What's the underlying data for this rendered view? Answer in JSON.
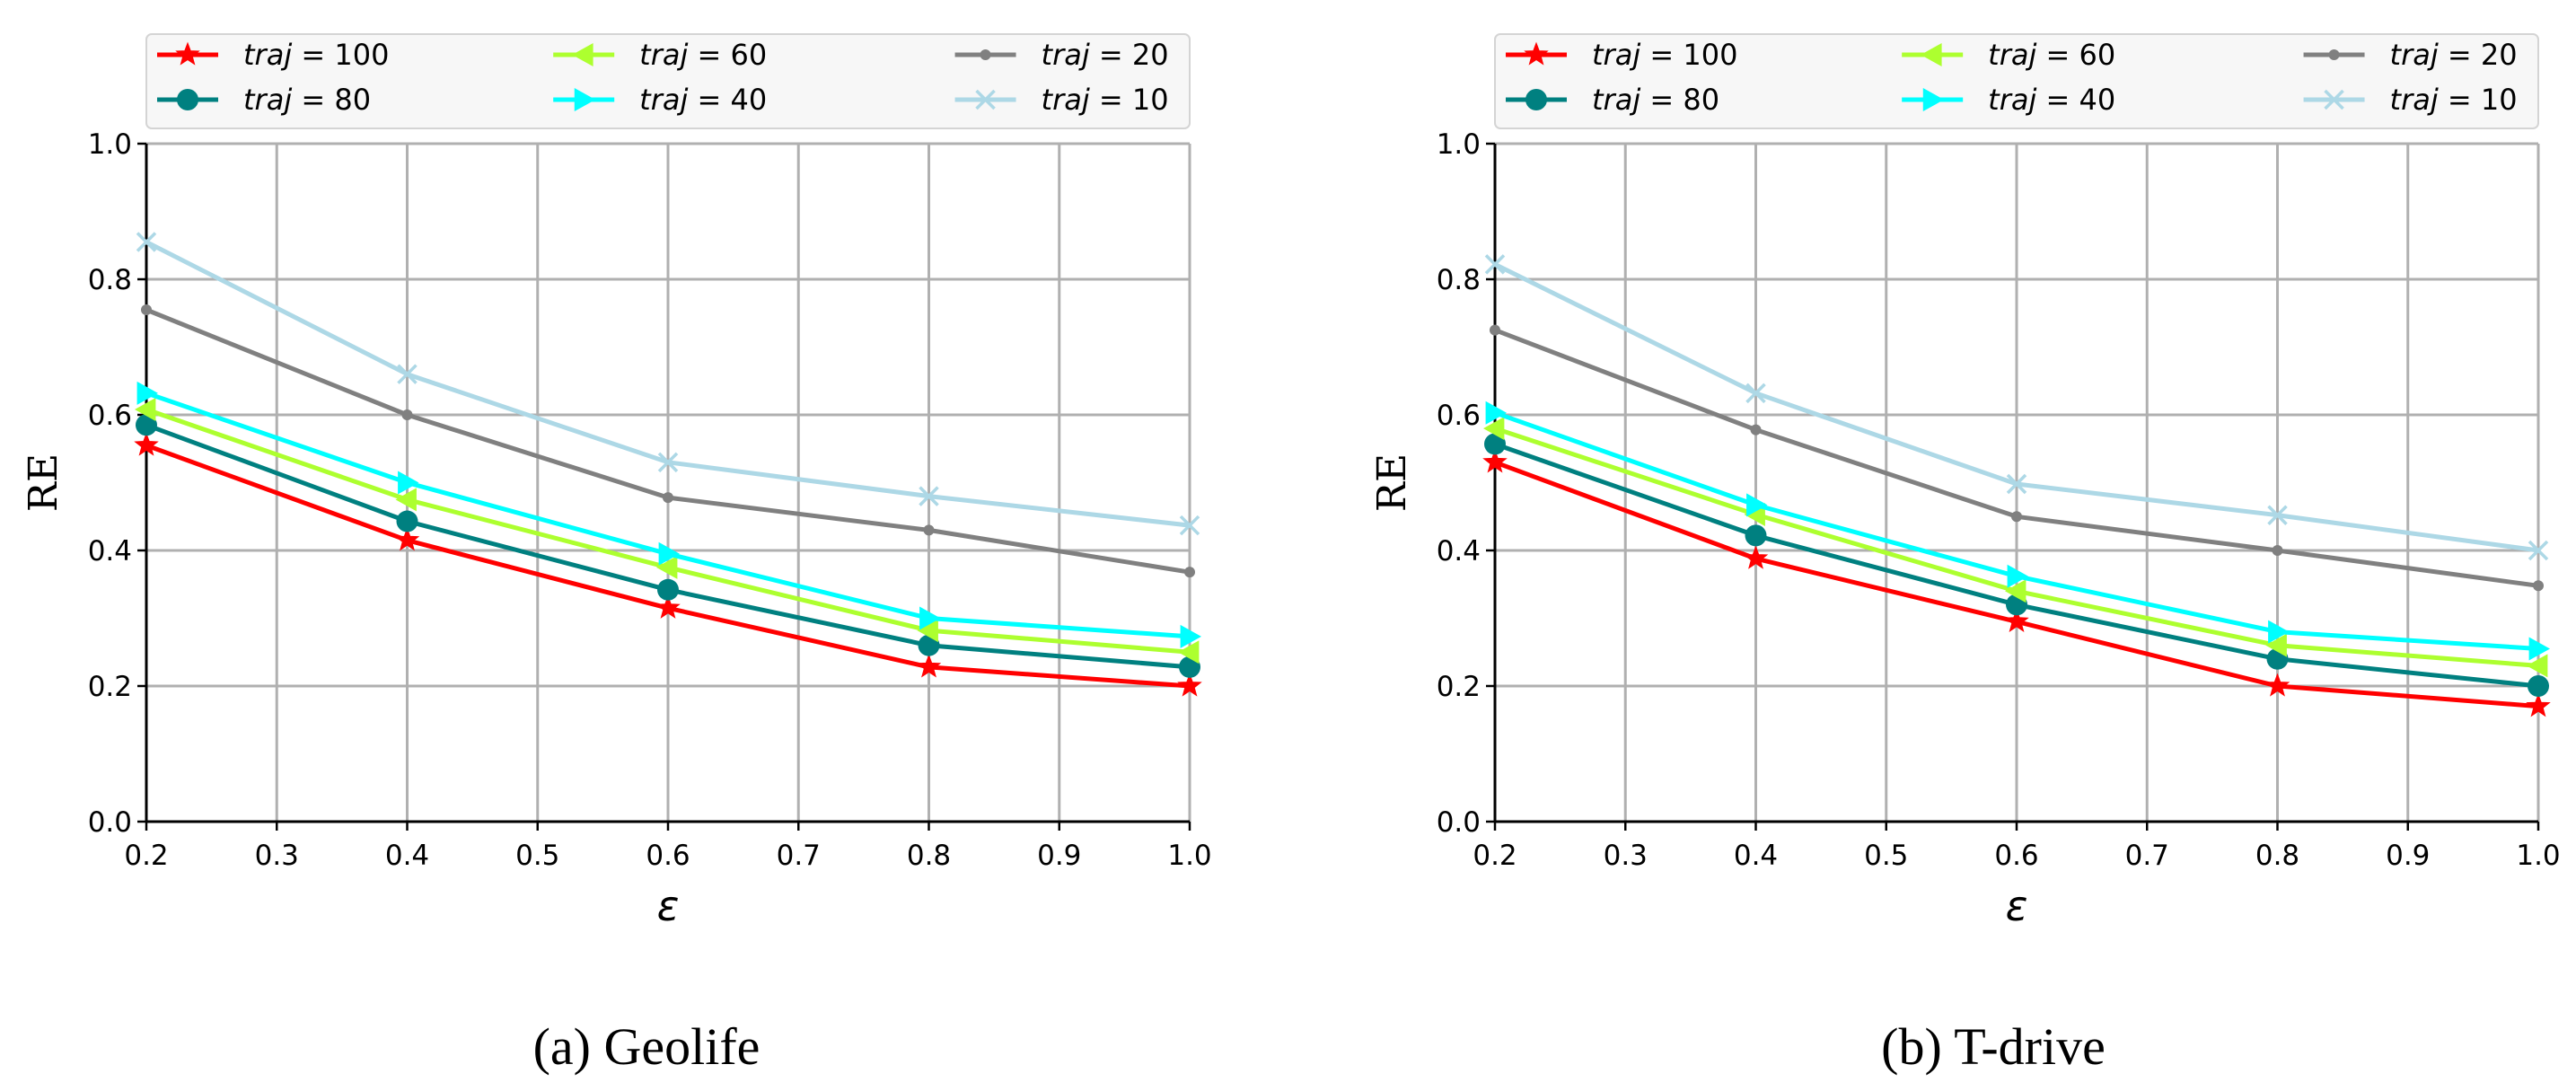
{
  "chart_data": [
    {
      "type": "line",
      "caption": "(a) Geolife",
      "xlabel": "ε",
      "ylabel": "RE",
      "xlim": [
        0.2,
        1.0
      ],
      "ylim": [
        0.0,
        1.0
      ],
      "xticks": [
        "0.2",
        "0.3",
        "0.4",
        "0.5",
        "0.6",
        "0.7",
        "0.8",
        "0.9",
        "1.0"
      ],
      "yticks": [
        "0.0",
        "0.2",
        "0.4",
        "0.6",
        "0.8",
        "1.0"
      ],
      "grid": true,
      "legend_position": "top",
      "x": [
        0.2,
        0.4,
        0.6,
        0.8,
        1.0
      ],
      "series": [
        {
          "name_var": "traj",
          "name_val": "100",
          "color": "#ff0000",
          "marker": "star",
          "values": [
            0.555,
            0.415,
            0.315,
            0.228,
            0.2
          ]
        },
        {
          "name_var": "traj",
          "name_val": "80",
          "color": "#008080",
          "marker": "circle",
          "values": [
            0.585,
            0.443,
            0.342,
            0.26,
            0.228
          ]
        },
        {
          "name_var": "traj",
          "name_val": "60",
          "color": "#adff2f",
          "marker": "triangle-left",
          "values": [
            0.608,
            0.475,
            0.375,
            0.282,
            0.25
          ]
        },
        {
          "name_var": "traj",
          "name_val": "40",
          "color": "#00ffff",
          "marker": "triangle-right",
          "values": [
            0.632,
            0.5,
            0.395,
            0.3,
            0.273
          ]
        },
        {
          "name_var": "traj",
          "name_val": "20",
          "color": "#808080",
          "marker": "point",
          "values": [
            0.755,
            0.6,
            0.478,
            0.43,
            0.368
          ]
        },
        {
          "name_var": "traj",
          "name_val": "10",
          "color": "#add8e6",
          "marker": "x",
          "values": [
            0.855,
            0.66,
            0.53,
            0.48,
            0.437
          ]
        }
      ]
    },
    {
      "type": "line",
      "caption": "(b) T-drive",
      "xlabel": "ε",
      "ylabel": "RE",
      "xlim": [
        0.2,
        1.0
      ],
      "ylim": [
        0.0,
        1.0
      ],
      "xticks": [
        "0.2",
        "0.3",
        "0.4",
        "0.5",
        "0.6",
        "0.7",
        "0.8",
        "0.9",
        "1.0"
      ],
      "yticks": [
        "0.0",
        "0.2",
        "0.4",
        "0.6",
        "0.8",
        "1.0"
      ],
      "grid": true,
      "legend_position": "top",
      "x": [
        0.2,
        0.4,
        0.6,
        0.8,
        1.0
      ],
      "series": [
        {
          "name_var": "traj",
          "name_val": "100",
          "color": "#ff0000",
          "marker": "star",
          "values": [
            0.53,
            0.388,
            0.295,
            0.2,
            0.17
          ]
        },
        {
          "name_var": "traj",
          "name_val": "80",
          "color": "#008080",
          "marker": "circle",
          "values": [
            0.557,
            0.422,
            0.32,
            0.24,
            0.2
          ]
        },
        {
          "name_var": "traj",
          "name_val": "60",
          "color": "#adff2f",
          "marker": "triangle-left",
          "values": [
            0.58,
            0.453,
            0.34,
            0.26,
            0.23
          ]
        },
        {
          "name_var": "traj",
          "name_val": "40",
          "color": "#00ffff",
          "marker": "triangle-right",
          "values": [
            0.603,
            0.467,
            0.362,
            0.28,
            0.255
          ]
        },
        {
          "name_var": "traj",
          "name_val": "20",
          "color": "#808080",
          "marker": "point",
          "values": [
            0.725,
            0.578,
            0.45,
            0.4,
            0.348
          ]
        },
        {
          "name_var": "traj",
          "name_val": "10",
          "color": "#add8e6",
          "marker": "x",
          "values": [
            0.822,
            0.632,
            0.498,
            0.452,
            0.4
          ]
        }
      ]
    }
  ]
}
